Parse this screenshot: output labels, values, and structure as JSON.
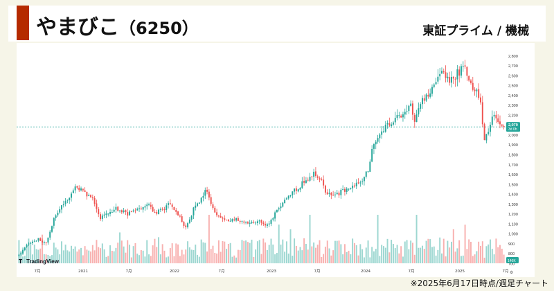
{
  "header": {
    "company": "やまびこ",
    "code": "（6250）",
    "market": "東証プライム / 機械"
  },
  "footnote": "※2025年6月17日時点/週足チャート",
  "watermark": "TradingView",
  "colors": {
    "up": "#26a69a",
    "down": "#ef5350",
    "accent": "#b52a00",
    "background": "#f6f5e8"
  },
  "chart_data": {
    "type": "candlestick",
    "frequency": "weekly",
    "ylim": [
      700,
      2900
    ],
    "yticks": [
      700,
      800,
      900,
      1000,
      1100,
      1200,
      1300,
      1400,
      1500,
      1600,
      1700,
      1800,
      1900,
      2000,
      2100,
      2200,
      2300,
      2400,
      2500,
      2600,
      2700,
      2800
    ],
    "yticks_labels": [
      "700",
      "800",
      "900",
      "1,000",
      "1,100",
      "1,200",
      "1,300",
      "1,400",
      "1,500",
      "1,600",
      "1,700",
      "1,800",
      "1,900",
      "2,000",
      "2,100",
      "2,200",
      "2,300",
      "2,400",
      "2,500",
      "2,600",
      "2,700",
      "2,800"
    ],
    "xticks": [
      "7月",
      "2021",
      "7月",
      "2022",
      "7月",
      "2023",
      "7月",
      "2024",
      "7月",
      "2025",
      "7月"
    ],
    "last_price_label": "2,079",
    "countdown_label": "3d 0h",
    "volume_label": "146K",
    "close_anchors": [
      [
        0,
        790
      ],
      [
        6,
        920
      ],
      [
        10,
        950
      ],
      [
        14,
        900
      ],
      [
        18,
        1150
      ],
      [
        22,
        1300
      ],
      [
        26,
        1380
      ],
      [
        30,
        1480
      ],
      [
        34,
        1400
      ],
      [
        38,
        1350
      ],
      [
        42,
        1150
      ],
      [
        46,
        1200
      ],
      [
        50,
        1250
      ],
      [
        56,
        1200
      ],
      [
        62,
        1250
      ],
      [
        66,
        1300
      ],
      [
        70,
        1200
      ],
      [
        74,
        1250
      ],
      [
        78,
        1300
      ],
      [
        82,
        1200
      ],
      [
        86,
        1050
      ],
      [
        90,
        1250
      ],
      [
        94,
        1350
      ],
      [
        96,
        1450
      ],
      [
        100,
        1250
      ],
      [
        104,
        1150
      ],
      [
        108,
        1120
      ],
      [
        112,
        1150
      ],
      [
        116,
        1120
      ],
      [
        120,
        1100
      ],
      [
        124,
        1120
      ],
      [
        128,
        1080
      ],
      [
        132,
        1200
      ],
      [
        136,
        1300
      ],
      [
        140,
        1400
      ],
      [
        144,
        1470
      ],
      [
        148,
        1550
      ],
      [
        152,
        1600
      ],
      [
        156,
        1560
      ],
      [
        158,
        1400
      ],
      [
        162,
        1380
      ],
      [
        166,
        1420
      ],
      [
        170,
        1470
      ],
      [
        174,
        1500
      ],
      [
        178,
        1550
      ],
      [
        180,
        1650
      ],
      [
        182,
        1850
      ],
      [
        186,
        2000
      ],
      [
        190,
        2100
      ],
      [
        194,
        2150
      ],
      [
        198,
        2200
      ],
      [
        200,
        2250
      ],
      [
        202,
        2350
      ],
      [
        204,
        2100
      ],
      [
        206,
        2280
      ],
      [
        210,
        2400
      ],
      [
        214,
        2500
      ],
      [
        218,
        2600
      ],
      [
        222,
        2550
      ],
      [
        226,
        2620
      ],
      [
        230,
        2700
      ],
      [
        233,
        2500
      ],
      [
        236,
        2450
      ],
      [
        238,
        2300
      ],
      [
        240,
        1950
      ],
      [
        242,
        2050
      ],
      [
        244,
        2150
      ],
      [
        246,
        2200
      ],
      [
        248,
        2100
      ],
      [
        250,
        2079
      ]
    ]
  }
}
